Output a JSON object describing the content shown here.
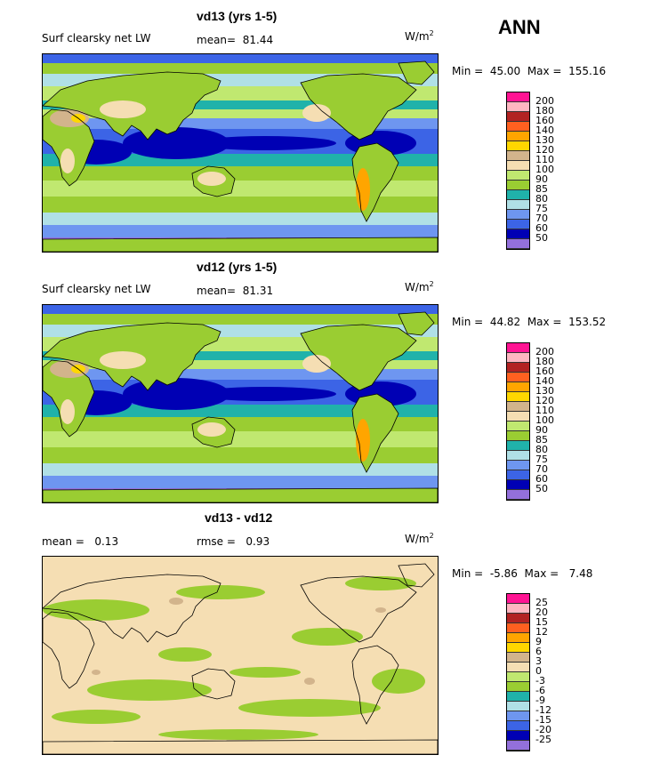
{
  "header": {
    "season": "ANN"
  },
  "colors": {
    "scale": [
      "#9370db",
      "#0000b4",
      "#3c64e6",
      "#6e96f0",
      "#b0e0e6",
      "#20b2aa",
      "#9acd32",
      "#c0e870",
      "#f5deb3",
      "#d2b48c",
      "#ffd700",
      "#ffa500",
      "#ff6020",
      "#b22222",
      "#ffb6c1",
      "#ff1493"
    ],
    "diff_scale": [
      "#9370db",
      "#0000b4",
      "#3c64e6",
      "#6e96f0",
      "#b0e0e6",
      "#20b2aa",
      "#9acd32",
      "#c0e870",
      "#f5deb3",
      "#d2b48c",
      "#ffd700",
      "#ffa500",
      "#ff6020",
      "#b22222",
      "#ffb6c1",
      "#ff1493"
    ],
    "land_outline": "#000000"
  },
  "chart_data": [
    {
      "type": "heatmap",
      "title": "vd13 (yrs 1-5)",
      "field": "Surf clearsky net LW",
      "mean_label": "mean=",
      "mean": "81.44",
      "units_base": "W/m",
      "units_exp": "2",
      "min_label": "Min =",
      "min": "45.00",
      "max_label": "Max =",
      "max": "155.16",
      "levels": [
        "200",
        "180",
        "160",
        "140",
        "130",
        "120",
        "110",
        "100",
        "90",
        "85",
        "80",
        "75",
        "70",
        "60",
        "50"
      ]
    },
    {
      "type": "heatmap",
      "title": "vd12 (yrs 1-5)",
      "field": "Surf clearsky net LW",
      "mean_label": "mean=",
      "mean": "81.31",
      "units_base": "W/m",
      "units_exp": "2",
      "min_label": "Min =",
      "min": "44.82",
      "max_label": "Max =",
      "max": "153.52",
      "levels": [
        "200",
        "180",
        "160",
        "140",
        "130",
        "120",
        "110",
        "100",
        "90",
        "85",
        "80",
        "75",
        "70",
        "60",
        "50"
      ]
    },
    {
      "type": "heatmap",
      "title": "vd13 - vd12",
      "mean_label": "mean =",
      "mean": "0.13",
      "rmse_label": "rmse =",
      "rmse": "0.93",
      "units_base": "W/m",
      "units_exp": "2",
      "min_label": "Min =",
      "min": "-5.86",
      "max_label": "Max =",
      "max": "7.48",
      "levels": [
        "25",
        "20",
        "15",
        "12",
        "9",
        "6",
        "3",
        "0",
        "-3",
        "-6",
        "-9",
        "-12",
        "-15",
        "-20",
        "-25"
      ]
    }
  ]
}
